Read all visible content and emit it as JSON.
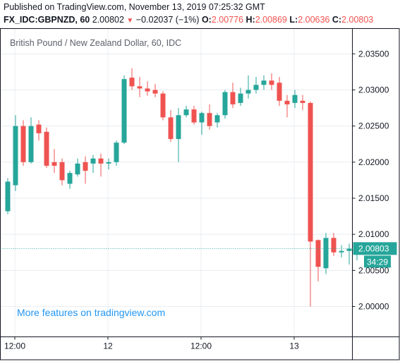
{
  "header": {
    "published": "Published on TradingView.com, November 13, 2019 07:25:32 GMT",
    "symbol": "FX_IDC:GBPNZD, 60",
    "last": "2.00802",
    "change_arrow": "▼",
    "change": "−0.02037 (−1%)",
    "o_label": "O:",
    "o_value": "2.00776",
    "h_label": "H:",
    "h_value": "2.00869",
    "l_label": "L:",
    "l_value": "2.00636",
    "c_label": "C:",
    "c_value": "2.00803"
  },
  "watermark": "More features on tradingview.com",
  "price_badge": "2.00803",
  "countdown_badge": "34:29",
  "colors": {
    "up": "#26a69a",
    "down": "#ef5350",
    "grid": "#e9ecf0",
    "axis_text": "#131722",
    "watermark": "#2196f3"
  },
  "chart_data": {
    "type": "candlestick",
    "title": "British Pound / New Zealand Dollar, 60, IDC",
    "ylim": [
      1.9958,
      2.0385
    ],
    "yticks": [
      "2.03500",
      "2.03000",
      "2.02500",
      "2.02000",
      "2.01500",
      "2.01000",
      "2.00500",
      "2.00000"
    ],
    "xticks": [
      {
        "label": "12:00",
        "index": 0
      },
      {
        "label": "12",
        "index": 12
      },
      {
        "label": "12:00",
        "index": 24
      },
      {
        "label": "13",
        "index": 36
      }
    ],
    "last_close": 2.00803,
    "candles": [
      {
        "o": 2.0132,
        "h": 2.0178,
        "l": 2.0128,
        "c": 2.0173
      },
      {
        "o": 2.0168,
        "h": 2.0265,
        "l": 2.016,
        "c": 2.025
      },
      {
        "o": 2.025,
        "h": 2.0258,
        "l": 2.0195,
        "c": 2.02
      },
      {
        "o": 2.02,
        "h": 2.0262,
        "l": 2.0198,
        "c": 2.025
      },
      {
        "o": 2.0252,
        "h": 2.0258,
        "l": 2.023,
        "c": 2.024
      },
      {
        "o": 2.0242,
        "h": 2.0248,
        "l": 2.0192,
        "c": 2.0195
      },
      {
        "o": 2.02,
        "h": 2.0218,
        "l": 2.0185,
        "c": 2.0195
      },
      {
        "o": 2.02,
        "h": 2.0205,
        "l": 2.0168,
        "c": 2.0175
      },
      {
        "o": 2.017,
        "h": 2.0188,
        "l": 2.0163,
        "c": 2.0185
      },
      {
        "o": 2.0183,
        "h": 2.0205,
        "l": 2.018,
        "c": 2.0198
      },
      {
        "o": 2.02,
        "h": 2.0208,
        "l": 2.017,
        "c": 2.0188
      },
      {
        "o": 2.0198,
        "h": 2.021,
        "l": 2.0185,
        "c": 2.0205
      },
      {
        "o": 2.0205,
        "h": 2.0212,
        "l": 2.018,
        "c": 2.0198
      },
      {
        "o": 2.0198,
        "h": 2.0205,
        "l": 2.019,
        "c": 2.02
      },
      {
        "o": 2.02,
        "h": 2.023,
        "l": 2.0195,
        "c": 2.0227
      },
      {
        "o": 2.0227,
        "h": 2.032,
        "l": 2.0225,
        "c": 2.0315
      },
      {
        "o": 2.0317,
        "h": 2.033,
        "l": 2.03,
        "c": 2.0305
      },
      {
        "o": 2.0305,
        "h": 2.0318,
        "l": 2.029,
        "c": 2.0302
      },
      {
        "o": 2.0302,
        "h": 2.0312,
        "l": 2.0292,
        "c": 2.0298
      },
      {
        "o": 2.03,
        "h": 2.0308,
        "l": 2.029,
        "c": 2.0295
      },
      {
        "o": 2.0295,
        "h": 2.0298,
        "l": 2.0258,
        "c": 2.0262
      },
      {
        "o": 2.0262,
        "h": 2.0272,
        "l": 2.0228,
        "c": 2.0232
      },
      {
        "o": 2.0232,
        "h": 2.0275,
        "l": 2.02,
        "c": 2.0265
      },
      {
        "o": 2.0265,
        "h": 2.0278,
        "l": 2.0262,
        "c": 2.0273
      },
      {
        "o": 2.0273,
        "h": 2.0278,
        "l": 2.0252,
        "c": 2.0255
      },
      {
        "o": 2.0255,
        "h": 2.027,
        "l": 2.0238,
        "c": 2.0268
      },
      {
        "o": 2.0268,
        "h": 2.028,
        "l": 2.0245,
        "c": 2.025
      },
      {
        "o": 2.0255,
        "h": 2.0268,
        "l": 2.0248,
        "c": 2.0265
      },
      {
        "o": 2.0265,
        "h": 2.03,
        "l": 2.026,
        "c": 2.0297
      },
      {
        "o": 2.0297,
        "h": 2.031,
        "l": 2.0275,
        "c": 2.028
      },
      {
        "o": 2.0282,
        "h": 2.0303,
        "l": 2.0278,
        "c": 2.0295
      },
      {
        "o": 2.0295,
        "h": 2.032,
        "l": 2.0288,
        "c": 2.03
      },
      {
        "o": 2.03,
        "h": 2.0318,
        "l": 2.0295,
        "c": 2.0307
      },
      {
        "o": 2.0307,
        "h": 2.032,
        "l": 2.03,
        "c": 2.0313
      },
      {
        "o": 2.0313,
        "h": 2.0323,
        "l": 2.03,
        "c": 2.0307
      },
      {
        "o": 2.031,
        "h": 2.0318,
        "l": 2.0278,
        "c": 2.0285
      },
      {
        "o": 2.0285,
        "h": 2.0293,
        "l": 2.0262,
        "c": 2.028
      },
      {
        "o": 2.0282,
        "h": 2.03,
        "l": 2.0275,
        "c": 2.0293
      },
      {
        "o": 2.0285,
        "h": 2.0293,
        "l": 2.0272,
        "c": 2.0282
      },
      {
        "o": 2.0282,
        "h": 2.0284,
        "l": 2.0,
        "c": 2.009
      },
      {
        "o": 2.0092,
        "h": 2.0093,
        "l": 2.0035,
        "c": 2.0055
      },
      {
        "o": 2.0053,
        "h": 2.0102,
        "l": 2.0045,
        "c": 2.0095
      },
      {
        "o": 2.0095,
        "h": 2.0102,
        "l": 2.007,
        "c": 2.0075
      },
      {
        "o": 2.0075,
        "h": 2.0085,
        "l": 2.0068,
        "c": 2.0077
      },
      {
        "o": 2.0077,
        "h": 2.0087,
        "l": 2.0058,
        "c": 2.008
      },
      {
        "o": 2.0078,
        "h": 2.0087,
        "l": 2.0064,
        "c": 2.008
      }
    ]
  }
}
